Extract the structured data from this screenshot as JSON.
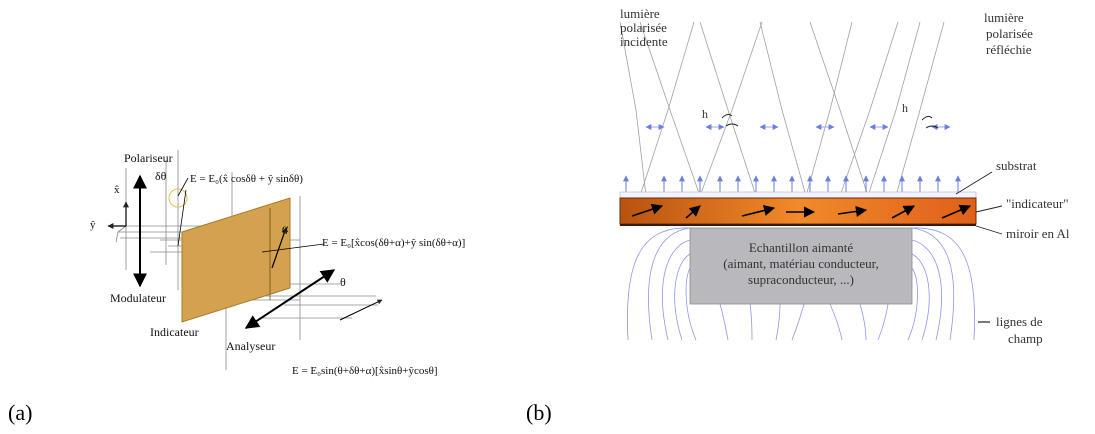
{
  "panel_a": {
    "caption": "(a)",
    "polariseur": "Polariseur",
    "delta_theta": "δθ",
    "axis_x": "x̂",
    "axis_y": "ŷ",
    "modulateur": "Modulateur",
    "indicateur": "Indicateur",
    "analyseur": "Analyseur",
    "alpha": "α",
    "theta": "θ",
    "eq1": "E = E₀(x̂ cosδθ + ŷ sinδθ)",
    "eq2": "E = E₀[x̂cos(δθ+α)+ŷ sin(δθ+α)]",
    "eq3": "E = E₀sin(θ+δθ+α)[x̂sinθ+ŷcosθ]",
    "colors": {
      "plate": "#d4a24e",
      "plate_edge": "#a87a2a"
    }
  },
  "panel_b": {
    "caption": "(b)",
    "incident_l1": "lumière",
    "incident_l2": "polarisée",
    "incident_l3": "incidente",
    "reflected_l1": "lumière",
    "reflected_l2": "polarisée",
    "reflected_l3": "réfléchie",
    "h_left": "h",
    "h_right": "h",
    "substrat": "substrat",
    "indicateur": "\"indicateur\"",
    "miroir": "miroir en Al",
    "sample_l1": "Echantillon aimanté",
    "sample_l2": "(aimant, matériau conducteur,",
    "sample_l3": "supraconducteur, ...)",
    "lignes_l1": "lignes de",
    "lignes_l2": "champ",
    "colors": {
      "indicator": "#e8701e",
      "sample": "#b9b9bd",
      "field_lines": "#8f96e6"
    }
  }
}
